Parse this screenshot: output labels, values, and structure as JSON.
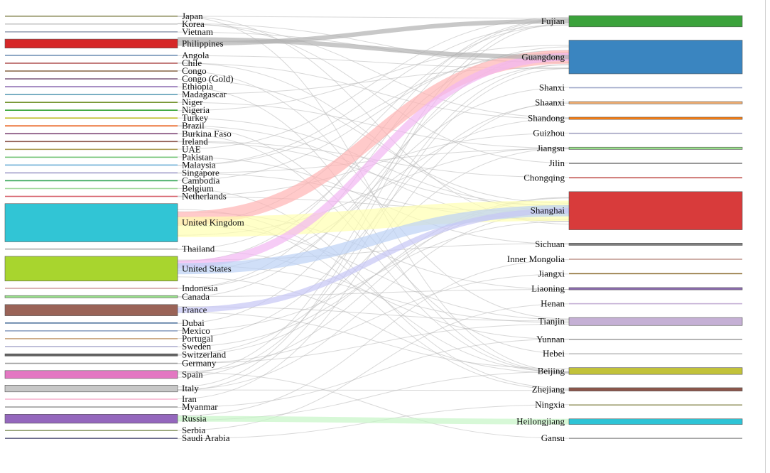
{
  "colors": {
    "link_gray": "#b8b8b8",
    "node_stroke": "#555555",
    "frame_line": "#cfcfcf"
  },
  "sources": [
    {
      "name": "Japan",
      "color": "#8c8c5a",
      "weight": 1
    },
    {
      "name": "Korea",
      "color": "#c7c7c7",
      "weight": 1
    },
    {
      "name": "Vietnam",
      "color": "#9aa3b5",
      "weight": 1
    },
    {
      "name": "Philippines",
      "color": "#d62728",
      "weight": 8
    },
    {
      "name": "Angola",
      "color": "#6f8fb5",
      "weight": 1
    },
    {
      "name": "Chile",
      "color": "#b35a5a",
      "weight": 1
    },
    {
      "name": "Congo",
      "color": "#8b6b4b",
      "weight": 1
    },
    {
      "name": "Congo (Gold)",
      "color": "#7a5a7a",
      "weight": 1
    },
    {
      "name": "Ethiopia",
      "color": "#8c6bb1",
      "weight": 1
    },
    {
      "name": "Madagascar",
      "color": "#5a9bb5",
      "weight": 1
    },
    {
      "name": "Niger",
      "color": "#6b8e23",
      "weight": 1
    },
    {
      "name": "Nigeria",
      "color": "#2ca02c",
      "weight": 1
    },
    {
      "name": "Turkey",
      "color": "#bcbd22",
      "weight": 1
    },
    {
      "name": "Brazil",
      "color": "#e6550d",
      "weight": 1
    },
    {
      "name": "Burkina Faso",
      "color": "#7b4173",
      "weight": 1
    },
    {
      "name": "Ireland",
      "color": "#8c564b",
      "weight": 1
    },
    {
      "name": "UAE",
      "color": "#ad9f5a",
      "weight": 1
    },
    {
      "name": "Pakistan",
      "color": "#74c476",
      "weight": 1
    },
    {
      "name": "Malaysia",
      "color": "#6baed6",
      "weight": 1
    },
    {
      "name": "Singapore",
      "color": "#9e9ac8",
      "weight": 1
    },
    {
      "name": "Cambodia",
      "color": "#31a354",
      "weight": 1
    },
    {
      "name": "Belgium",
      "color": "#a1d99b",
      "weight": 1
    },
    {
      "name": "Netherlands",
      "color": "#d6616b",
      "weight": 1
    },
    {
      "name": "United Kingdom",
      "color": "#31c5d5",
      "weight": 34
    },
    {
      "name": "Thailand",
      "color": "#aaaaaa",
      "weight": 1
    },
    {
      "name": "United States",
      "color": "#a8d52e",
      "weight": 22
    },
    {
      "name": "Indonesia",
      "color": "#d0a0a0",
      "weight": 1
    },
    {
      "name": "Canada",
      "color": "#98df8a",
      "weight": 2
    },
    {
      "name": "France",
      "color": "#9a6357",
      "weight": 10
    },
    {
      "name": "Dubai",
      "color": "#4a6f9a",
      "weight": 1
    },
    {
      "name": "Mexico",
      "color": "#8ca0c0",
      "weight": 1
    },
    {
      "name": "Portugal",
      "color": "#c7a17a",
      "weight": 1
    },
    {
      "name": "Sweden",
      "color": "#b0b0d0",
      "weight": 1
    },
    {
      "name": "Switzerland",
      "color": "#636363",
      "weight": 2
    },
    {
      "name": "Germany",
      "color": "#9a9a9a",
      "weight": 1
    },
    {
      "name": "Spain",
      "color": "#e377c2",
      "weight": 7
    },
    {
      "name": "Italy",
      "color": "#c7c7c7",
      "weight": 6
    },
    {
      "name": "Iran",
      "color": "#f7b6d2",
      "weight": 1
    },
    {
      "name": "Myanmar",
      "color": "#9c9c9c",
      "weight": 1
    },
    {
      "name": "Russia",
      "color": "#9467bd",
      "weight": 8
    },
    {
      "name": "Serbia",
      "color": "#8c9a6a",
      "weight": 1
    },
    {
      "name": "Saudi Arabia",
      "color": "#6a6a8a",
      "weight": 1
    }
  ],
  "targets": [
    {
      "name": "Fujian",
      "color": "#3ba23b",
      "weight": 10
    },
    {
      "name": "Guangdong",
      "color": "#3a85c0",
      "weight": 30
    },
    {
      "name": "Shanxi",
      "color": "#9fa8c8",
      "weight": 1
    },
    {
      "name": "Shaanxi",
      "color": "#f5b070",
      "weight": 2
    },
    {
      "name": "Shandong",
      "color": "#ff7f0e",
      "weight": 2
    },
    {
      "name": "Guizhou",
      "color": "#a0a0c0",
      "weight": 1
    },
    {
      "name": "Jiangsu",
      "color": "#98df8a",
      "weight": 2
    },
    {
      "name": "Jilin",
      "color": "#7a7a7a",
      "weight": 1
    },
    {
      "name": "Chongqing",
      "color": "#c0504d",
      "weight": 1
    },
    {
      "name": "Shanghai",
      "color": "#d83b3b",
      "weight": 34
    },
    {
      "name": "Sichuan",
      "color": "#7f7f7f",
      "weight": 2
    },
    {
      "name": "Inner Mongolia",
      "color": "#c49c94",
      "weight": 1
    },
    {
      "name": "Jiangxi",
      "color": "#8c6d31",
      "weight": 1
    },
    {
      "name": "Liaoning",
      "color": "#8c6bb1",
      "weight": 2
    },
    {
      "name": "Henan",
      "color": "#c5b0d5",
      "weight": 1
    },
    {
      "name": "Tianjin",
      "color": "#c5b0d5",
      "weight": 7
    },
    {
      "name": "Yunnan",
      "color": "#9f9f9f",
      "weight": 1
    },
    {
      "name": "Hebei",
      "color": "#bfbfbf",
      "weight": 1
    },
    {
      "name": "Beijing",
      "color": "#c2c23a",
      "weight": 6
    },
    {
      "name": "Zhejiang",
      "color": "#8c564b",
      "weight": 3
    },
    {
      "name": "Ningxia",
      "color": "#9a9a6a",
      "weight": 1
    },
    {
      "name": "Heilongjiang",
      "color": "#2ec4d6",
      "weight": 5
    },
    {
      "name": "Gansu",
      "color": "#a6a6a6",
      "weight": 1
    }
  ],
  "highlight_links": [
    {
      "source": "United Kingdom",
      "target": "Guangdong",
      "color": "#ffb3b3",
      "value": 12
    },
    {
      "source": "United Kingdom",
      "target": "Shanghai",
      "color": "#ffffb0",
      "value": 18
    },
    {
      "source": "United States",
      "target": "Guangdong",
      "color": "#f2b6f2",
      "value": 7
    },
    {
      "source": "United States",
      "target": "Shanghai",
      "color": "#bcd2f5",
      "value": 10
    },
    {
      "source": "France",
      "target": "Shanghai",
      "color": "#c6c6f5",
      "value": 5
    },
    {
      "source": "Russia",
      "target": "Heilongjiang",
      "color": "#c6f5c6",
      "value": 5
    },
    {
      "source": "Philippines",
      "target": "Fujian",
      "color": "#b0b0b0",
      "value": 4
    },
    {
      "source": "Philippines",
      "target": "Guangdong",
      "color": "#b0b0b0",
      "value": 4
    }
  ],
  "gray_links": [
    [
      "Japan",
      "Shanghai"
    ],
    [
      "Japan",
      "Beijing"
    ],
    [
      "Korea",
      "Shandong"
    ],
    [
      "Korea",
      "Jilin"
    ],
    [
      "Vietnam",
      "Guangdong"
    ],
    [
      "Angola",
      "Guangdong"
    ],
    [
      "Chile",
      "Shanghai"
    ],
    [
      "Congo",
      "Tianjin"
    ],
    [
      "Congo (Gold)",
      "Shanghai"
    ],
    [
      "Ethiopia",
      "Beijing"
    ],
    [
      "Madagascar",
      "Guangdong"
    ],
    [
      "Niger",
      "Jiangsu"
    ],
    [
      "Nigeria",
      "Guangdong"
    ],
    [
      "Turkey",
      "Shanghai"
    ],
    [
      "Brazil",
      "Shanghai"
    ],
    [
      "Burkina Faso",
      "Beijing"
    ],
    [
      "Ireland",
      "Shanghai"
    ],
    [
      "UAE",
      "Fujian"
    ],
    [
      "Pakistan",
      "Sichuan"
    ],
    [
      "Malaysia",
      "Fujian"
    ],
    [
      "Singapore",
      "Shanghai"
    ],
    [
      "Cambodia",
      "Guangdong"
    ],
    [
      "Belgium",
      "Zhejiang"
    ],
    [
      "Netherlands",
      "Shanghai"
    ],
    [
      "United Kingdom",
      "Fujian"
    ],
    [
      "United Kingdom",
      "Beijing"
    ],
    [
      "United Kingdom",
      "Tianjin"
    ],
    [
      "United Kingdom",
      "Jiangsu"
    ],
    [
      "United Kingdom",
      "Zhejiang"
    ],
    [
      "United Kingdom",
      "Liaoning"
    ],
    [
      "Thailand",
      "Yunnan"
    ],
    [
      "Thailand",
      "Guangdong"
    ],
    [
      "United States",
      "Fujian"
    ],
    [
      "United States",
      "Tianjin"
    ],
    [
      "United States",
      "Beijing"
    ],
    [
      "United States",
      "Shandong"
    ],
    [
      "United States",
      "Sichuan"
    ],
    [
      "Indonesia",
      "Fujian"
    ],
    [
      "Canada",
      "Guangdong"
    ],
    [
      "Canada",
      "Liaoning"
    ],
    [
      "France",
      "Tianjin"
    ],
    [
      "France",
      "Beijing"
    ],
    [
      "Dubai",
      "Guangdong"
    ],
    [
      "Mexico",
      "Shanghai"
    ],
    [
      "Portugal",
      "Shaanxi"
    ],
    [
      "Sweden",
      "Shanghai"
    ],
    [
      "Switzerland",
      "Shanghai"
    ],
    [
      "Switzerland",
      "Jiangsu"
    ],
    [
      "Germany",
      "Tianjin"
    ],
    [
      "Spain",
      "Guangdong"
    ],
    [
      "Spain",
      "Fujian"
    ],
    [
      "Spain",
      "Shanghai"
    ],
    [
      "Italy",
      "Shanghai"
    ],
    [
      "Italy",
      "Guangdong"
    ],
    [
      "Italy",
      "Fujian"
    ],
    [
      "Iran",
      "Shaanxi"
    ],
    [
      "Myanmar",
      "Yunnan"
    ],
    [
      "Russia",
      "Beijing"
    ],
    [
      "Russia",
      "Inner Mongolia"
    ],
    [
      "Serbia",
      "Henan"
    ],
    [
      "Saudi Arabia",
      "Ningxia"
    ],
    [
      "Japan",
      "Fujian"
    ],
    [
      "Korea",
      "Guangdong"
    ],
    [
      "Chile",
      "Shandong"
    ],
    [
      "Brazil",
      "Hebei"
    ],
    [
      "Ireland",
      "Chongqing"
    ],
    [
      "Netherlands",
      "Guizhou"
    ],
    [
      "Germany",
      "Jiangxi"
    ],
    [
      "Italy",
      "Zhejiang"
    ],
    [
      "Spain",
      "Gansu"
    ],
    [
      "Indonesia",
      "Shanxi"
    ],
    [
      "Malaysia",
      "Guangdong"
    ],
    [
      "Singapore",
      "Jiangsu"
    ]
  ]
}
